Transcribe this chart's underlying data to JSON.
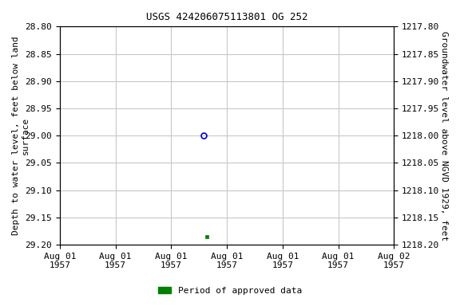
{
  "title": "USGS 424206075113801 OG 252",
  "ylabel_left": "Depth to water level, feet below land\nsurface",
  "ylabel_right": "Groundwater level above NGVD 1929, feet",
  "ylim_left": [
    28.8,
    29.2
  ],
  "ylim_right": [
    1218.2,
    1217.8
  ],
  "yticks_left": [
    28.8,
    28.85,
    28.9,
    28.95,
    29.0,
    29.05,
    29.1,
    29.15,
    29.2
  ],
  "yticks_right": [
    1218.2,
    1218.15,
    1218.1,
    1218.05,
    1218.0,
    1217.95,
    1217.9,
    1217.85,
    1217.8
  ],
  "xlim": [
    0.0,
    1.0
  ],
  "data_blue_x": [
    0.43
  ],
  "data_blue_y": [
    29.0
  ],
  "data_green_x": [
    0.44
  ],
  "data_green_y": [
    29.185
  ],
  "blue_color": "#0000cc",
  "green_color": "#008000",
  "background_color": "#ffffff",
  "grid_color": "#c8c8c8",
  "xtick_labels": [
    "Aug 01\n1957",
    "Aug 01\n1957",
    "Aug 01\n1957",
    "Aug 01\n1957",
    "Aug 01\n1957",
    "Aug 01\n1957",
    "Aug 02\n1957"
  ],
  "legend_label": "Period of approved data",
  "font_family": "DejaVu Sans Mono",
  "title_fontsize": 9,
  "label_fontsize": 8,
  "tick_fontsize": 8
}
